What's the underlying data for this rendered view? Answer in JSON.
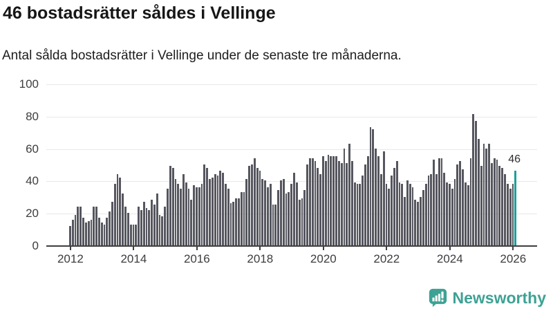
{
  "header": {
    "title": "46 bostadsrätter såldes i Vellinge",
    "subtitle": "Antal sålda bostadsrätter i Vellinge under de senaste tre månaderna."
  },
  "branding": {
    "wordmark": "Newsworthy",
    "icon": "newsworthy-chart-bubble-icon"
  },
  "colors": {
    "bar": "#55565e",
    "highlight": "#1aa09a",
    "axis": "#3f3f3f",
    "grid": "#e8e8e8",
    "logo_teal": "#3da294"
  },
  "chart_data": {
    "type": "bar",
    "title": "46 bostadsrätter såldes i Vellinge",
    "xlabel": "",
    "ylabel": "",
    "frequency": "monthly",
    "x_start": "2012-01",
    "x_end": "2026-02",
    "ylim": [
      0,
      100
    ],
    "yticks": [
      0,
      20,
      40,
      60,
      80,
      100
    ],
    "grid": "horizontal",
    "legend": "none",
    "x_tick_labels": [
      "2012",
      "2014",
      "2016",
      "2018",
      "2020",
      "2022",
      "2024",
      "2026"
    ],
    "x_tick_month_indices": [
      0,
      24,
      48,
      72,
      96,
      120,
      144,
      168
    ],
    "values": [
      12,
      16,
      19,
      24,
      24,
      17,
      14,
      15,
      16,
      24,
      24,
      17,
      14,
      13,
      17,
      21,
      27,
      38,
      44,
      42,
      32,
      24,
      20,
      13,
      13,
      13,
      24,
      22,
      27,
      23,
      22,
      28,
      25,
      32,
      19,
      18,
      24,
      35,
      49,
      48,
      41,
      38,
      35,
      44,
      39,
      35,
      28,
      37,
      36,
      36,
      38,
      50,
      48,
      41,
      42,
      44,
      43,
      46,
      45,
      38,
      35,
      26,
      27,
      29,
      29,
      33,
      33,
      41,
      49,
      50,
      54,
      48,
      46,
      41,
      40,
      36,
      38,
      25,
      25,
      34,
      40,
      41,
      32,
      33,
      38,
      45,
      39,
      28,
      29,
      34,
      50,
      54,
      54,
      52,
      48,
      44,
      55,
      52,
      56,
      55,
      55,
      55,
      52,
      51,
      60,
      51,
      63,
      52,
      39,
      38,
      38,
      43,
      50,
      55,
      73,
      72,
      60,
      55,
      44,
      58,
      38,
      35,
      43,
      48,
      52,
      39,
      38,
      30,
      40,
      38,
      36,
      28,
      27,
      30,
      34,
      38,
      43,
      44,
      53,
      44,
      54,
      54,
      45,
      39,
      38,
      35,
      41,
      50,
      52,
      47,
      39,
      37,
      54,
      81,
      77,
      66,
      49,
      63,
      60,
      63,
      51,
      54,
      53,
      49,
      48,
      44,
      38,
      35,
      38,
      46
    ],
    "highlight_last": {
      "value": 46,
      "label": "46"
    }
  }
}
